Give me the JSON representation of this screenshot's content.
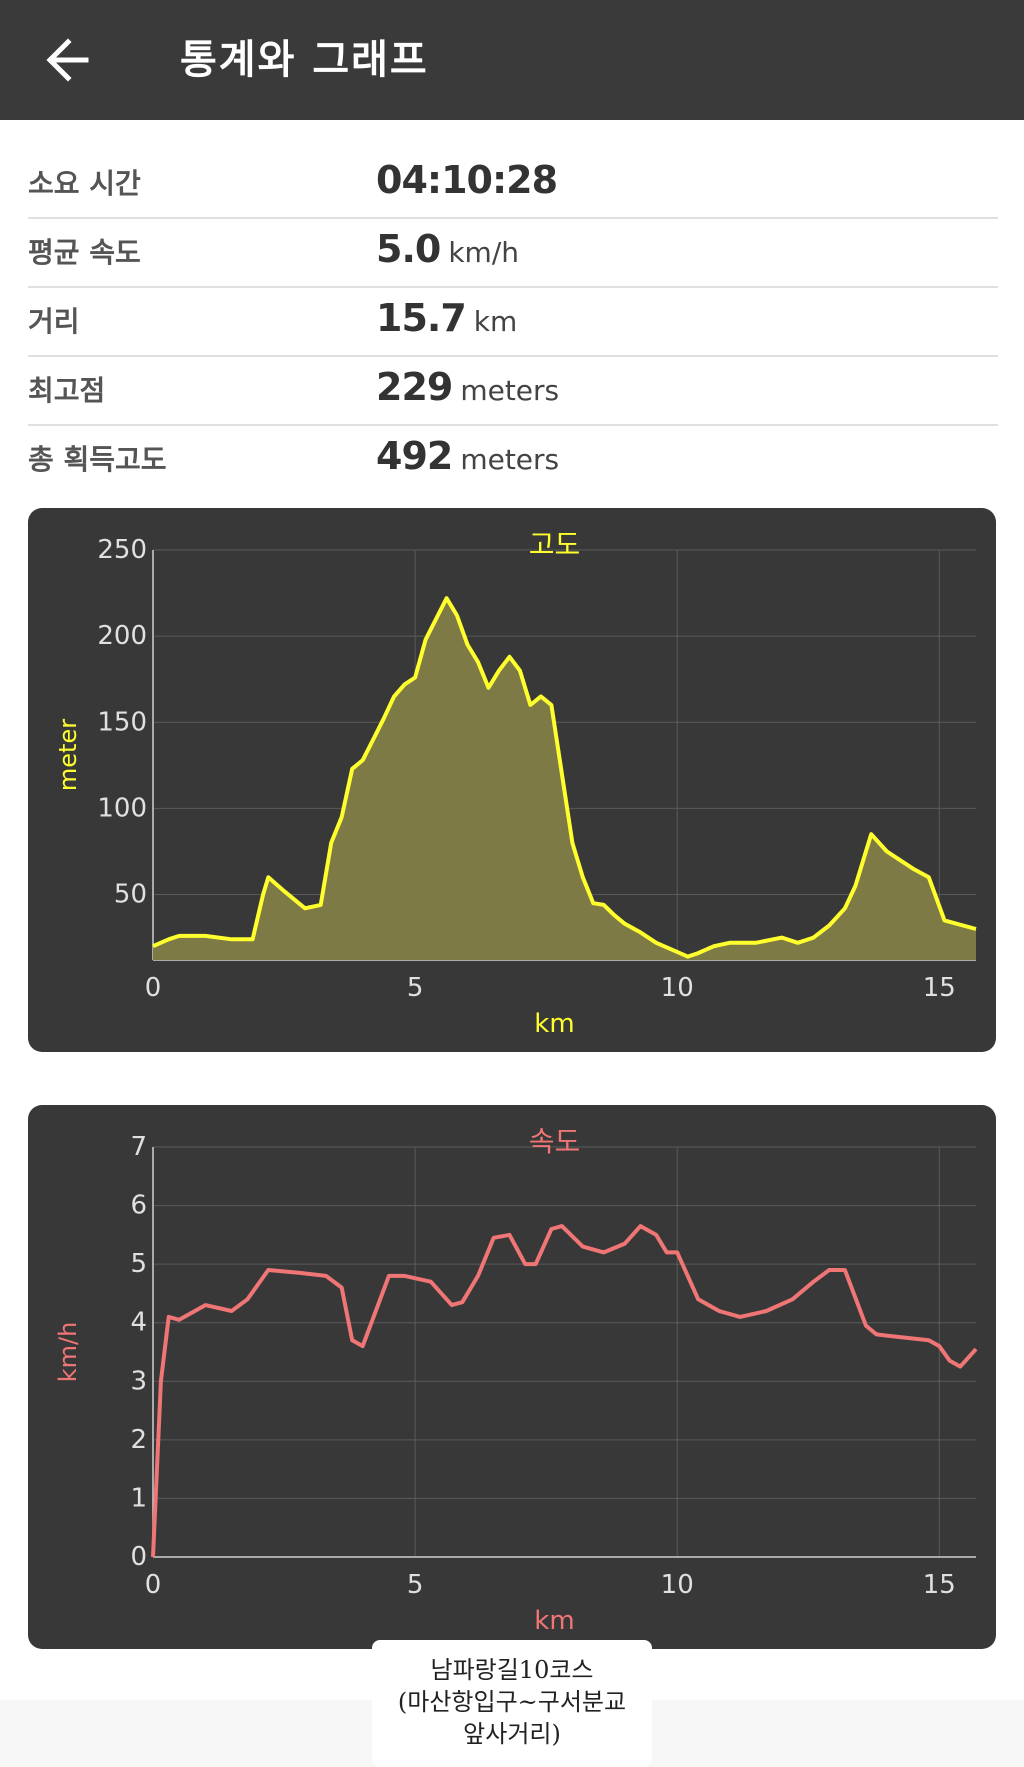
{
  "header": {
    "title": "통계와 그래프",
    "back_icon": "arrow-left-icon"
  },
  "stats": [
    {
      "label": "소요 시간",
      "value": "04:10:28",
      "unit": ""
    },
    {
      "label": "평균 속도",
      "value": "5.0",
      "unit": "km/h"
    },
    {
      "label": "거리",
      "value": "15.7",
      "unit": "km"
    },
    {
      "label": "최고점",
      "value": "229",
      "unit": "meters"
    },
    {
      "label": "총 획득고도",
      "value": "492",
      "unit": "meters"
    }
  ],
  "chart_data": [
    {
      "type": "area",
      "title": "고도",
      "xlabel": "km",
      "ylabel": "meter",
      "xlim": [
        0,
        15.7
      ],
      "ylim": [
        12,
        250
      ],
      "xticks": [
        0,
        5,
        10,
        15
      ],
      "yticks": [
        50,
        100,
        150,
        200,
        250
      ],
      "grid": true,
      "color": "#ffff2e",
      "fill": "#7d7a45",
      "x": [
        0,
        0.3,
        0.5,
        1.0,
        1.5,
        1.9,
        2.1,
        2.2,
        2.5,
        2.9,
        3.2,
        3.4,
        3.6,
        3.8,
        4.0,
        4.2,
        4.4,
        4.6,
        4.8,
        5.0,
        5.2,
        5.4,
        5.6,
        5.8,
        6.0,
        6.2,
        6.4,
        6.6,
        6.8,
        7.0,
        7.2,
        7.4,
        7.6,
        7.8,
        8.0,
        8.2,
        8.4,
        8.6,
        8.8,
        9.0,
        9.3,
        9.6,
        9.9,
        10.2,
        10.4,
        10.7,
        11.0,
        11.5,
        12.0,
        12.3,
        12.6,
        12.9,
        13.2,
        13.4,
        13.7,
        14.0,
        14.5,
        14.8,
        15.1,
        15.7
      ],
      "y": [
        20,
        24,
        26,
        26,
        24,
        24,
        50,
        60,
        52,
        42,
        44,
        80,
        95,
        123,
        128,
        140,
        152,
        165,
        172,
        176,
        198,
        210,
        222,
        212,
        195,
        185,
        170,
        180,
        188,
        180,
        160,
        165,
        160,
        120,
        80,
        60,
        45,
        44,
        38,
        33,
        28,
        22,
        18,
        14,
        16,
        20,
        22,
        22,
        25,
        22,
        25,
        32,
        42,
        55,
        85,
        75,
        65,
        60,
        35,
        30
      ]
    },
    {
      "type": "line",
      "title": "속도",
      "xlabel": "km",
      "ylabel": "km/h",
      "xlim": [
        0,
        15.7
      ],
      "ylim": [
        0,
        7
      ],
      "xticks": [
        0,
        5,
        10,
        15
      ],
      "yticks": [
        0,
        1,
        2,
        3,
        4,
        5,
        6,
        7
      ],
      "grid": true,
      "color": "#f07575",
      "x": [
        0,
        0.15,
        0.3,
        0.5,
        1.0,
        1.5,
        1.8,
        2.2,
        2.8,
        3.3,
        3.6,
        3.8,
        4.0,
        4.5,
        4.8,
        5.3,
        5.7,
        5.9,
        6.2,
        6.5,
        6.8,
        7.1,
        7.3,
        7.6,
        7.8,
        8.2,
        8.6,
        9.0,
        9.3,
        9.6,
        9.8,
        10.0,
        10.4,
        10.8,
        11.2,
        11.7,
        12.2,
        12.6,
        12.9,
        13.2,
        13.6,
        13.8,
        14.3,
        14.8,
        15.0,
        15.2,
        15.4,
        15.7
      ],
      "y": [
        0,
        3.0,
        4.1,
        4.05,
        4.3,
        4.2,
        4.4,
        4.9,
        4.85,
        4.8,
        4.6,
        3.7,
        3.6,
        4.8,
        4.8,
        4.7,
        4.3,
        4.35,
        4.8,
        5.45,
        5.5,
        5.0,
        5.0,
        5.6,
        5.65,
        5.3,
        5.2,
        5.35,
        5.65,
        5.5,
        5.2,
        5.2,
        4.4,
        4.2,
        4.1,
        4.2,
        4.4,
        4.7,
        4.9,
        4.9,
        3.95,
        3.8,
        3.75,
        3.7,
        3.6,
        3.35,
        3.25,
        3.55
      ]
    }
  ],
  "caption": {
    "line1": "남파랑길10코스",
    "line2": "(마산항입구~구서분교",
    "line3": "앞사거리)"
  }
}
